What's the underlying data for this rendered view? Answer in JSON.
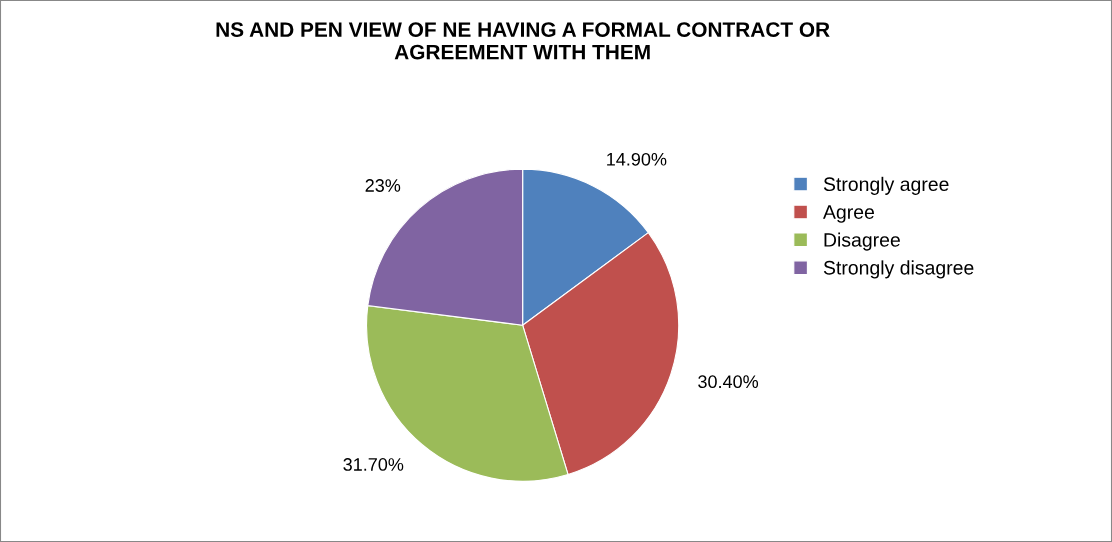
{
  "chart_data": {
    "type": "pie",
    "title": "NS AND PEN VIEW OF NE HAVING A FORMAL CONTRACT OR\nAGREEMENT WITH THEM",
    "categories": [
      "Strongly agree",
      "Agree",
      "Disagree",
      "Strongly disagree"
    ],
    "values": [
      14.9,
      30.4,
      31.7,
      23
    ],
    "value_labels": [
      "14.90%",
      "30.40%",
      "31.70%",
      "23%"
    ],
    "colors": [
      "#4f81bd",
      "#c0504d",
      "#9bbb59",
      "#8064a2"
    ],
    "legend": "right"
  }
}
